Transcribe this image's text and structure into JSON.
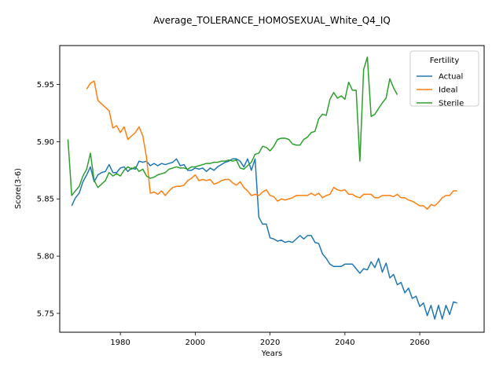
{
  "chart_data": {
    "type": "line",
    "title": "Average_TOLERANCE_HOMOSEXUAL_White_Q4_IQ",
    "xlabel": "Years",
    "ylabel": "Score(3-6)",
    "xlim": [
      1963.8,
      2077.2
    ],
    "ylim": [
      5.7335,
      5.984
    ],
    "xticks": [
      1980,
      2000,
      2020,
      2040,
      2060
    ],
    "yticks": [
      5.75,
      5.8,
      5.85,
      5.9,
      5.95
    ],
    "ytick_labels": [
      "5.75",
      "5.80",
      "5.85",
      "5.90",
      "5.95"
    ],
    "grid": false,
    "legend": {
      "title": "Fertility",
      "position": "upper right"
    },
    "series": [
      {
        "name": "Actual",
        "color": "#1f77b4",
        "x": [
          1967,
          1968,
          1969,
          1970,
          1971,
          1972,
          1973,
          1974,
          1975,
          1976,
          1977,
          1978,
          1979,
          1980,
          1981,
          1982,
          1983,
          1984,
          1985,
          1986,
          1987,
          1988,
          1989,
          1990,
          1991,
          1992,
          1993,
          1994,
          1995,
          1996,
          1997,
          1998,
          1999,
          2000,
          2001,
          2002,
          2003,
          2004,
          2005,
          2006,
          2007,
          2008,
          2009,
          2010,
          2011,
          2012,
          2013,
          2014,
          2015,
          2016,
          2017,
          2018,
          2019,
          2020,
          2021,
          2022,
          2023,
          2024,
          2025,
          2026,
          2027,
          2028,
          2029,
          2030,
          2031,
          2032,
          2033,
          2034,
          2035,
          2036,
          2037,
          2038,
          2039,
          2040,
          2041,
          2042,
          2043,
          2044,
          2045,
          2046,
          2047,
          2048,
          2049,
          2050,
          2051,
          2052,
          2053,
          2054,
          2055,
          2056,
          2057,
          2058,
          2059,
          2060,
          2061,
          2062,
          2063,
          2064,
          2065,
          2066,
          2067,
          2068,
          2069,
          2070
        ],
        "y": [
          5.844,
          5.851,
          5.855,
          5.865,
          5.871,
          5.878,
          5.865,
          5.871,
          5.873,
          5.874,
          5.88,
          5.873,
          5.873,
          5.877,
          5.878,
          5.874,
          5.877,
          5.876,
          5.883,
          5.882,
          5.883,
          5.879,
          5.881,
          5.879,
          5.881,
          5.88,
          5.881,
          5.882,
          5.885,
          5.879,
          5.88,
          5.875,
          5.875,
          5.877,
          5.876,
          5.877,
          5.874,
          5.877,
          5.875,
          5.878,
          5.88,
          5.882,
          5.883,
          5.885,
          5.885,
          5.883,
          5.878,
          5.885,
          5.875,
          5.885,
          5.834,
          5.828,
          5.828,
          5.816,
          5.815,
          5.813,
          5.814,
          5.812,
          5.813,
          5.812,
          5.815,
          5.818,
          5.815,
          5.818,
          5.818,
          5.812,
          5.811,
          5.802,
          5.798,
          5.793,
          5.791,
          5.791,
          5.791,
          5.793,
          5.793,
          5.793,
          5.789,
          5.785,
          5.789,
          5.788,
          5.795,
          5.79,
          5.798,
          5.786,
          5.794,
          5.781,
          5.784,
          5.775,
          5.777,
          5.768,
          5.772,
          5.763,
          5.765,
          5.756,
          5.759,
          5.748,
          5.757,
          5.745,
          5.757,
          5.745,
          5.757,
          5.749,
          5.76,
          5.759
        ]
      },
      {
        "name": "Ideal",
        "color": "#ff7f0e",
        "x": [
          1971,
          1972,
          1973,
          1974,
          1975,
          1976,
          1977,
          1978,
          1979,
          1980,
          1981,
          1982,
          1983,
          1984,
          1985,
          1986,
          1987,
          1988,
          1989,
          1990,
          1991,
          1992,
          1993,
          1994,
          1995,
          1996,
          1997,
          1998,
          1999,
          2000,
          2001,
          2002,
          2003,
          2004,
          2005,
          2006,
          2007,
          2008,
          2009,
          2010,
          2011,
          2012,
          2013,
          2014,
          2015,
          2016,
          2017,
          2018,
          2019,
          2020,
          2021,
          2022,
          2023,
          2024,
          2025,
          2026,
          2027,
          2028,
          2029,
          2030,
          2031,
          2032,
          2033,
          2034,
          2035,
          2036,
          2037,
          2038,
          2039,
          2040,
          2041,
          2042,
          2043,
          2044,
          2045,
          2046,
          2047,
          2048,
          2049,
          2050,
          2051,
          2052,
          2053,
          2054,
          2055,
          2056,
          2057,
          2058,
          2059,
          2060,
          2061,
          2062,
          2063,
          2064,
          2065,
          2066,
          2067,
          2068,
          2069,
          2070
        ],
        "y": [
          5.946,
          5.951,
          5.953,
          5.936,
          5.933,
          5.93,
          5.927,
          5.912,
          5.914,
          5.908,
          5.913,
          5.902,
          5.905,
          5.908,
          5.913,
          5.905,
          5.886,
          5.855,
          5.856,
          5.854,
          5.857,
          5.853,
          5.857,
          5.86,
          5.861,
          5.861,
          5.862,
          5.866,
          5.868,
          5.871,
          5.866,
          5.867,
          5.866,
          5.867,
          5.863,
          5.864,
          5.866,
          5.867,
          5.867,
          5.864,
          5.862,
          5.865,
          5.86,
          5.857,
          5.853,
          5.854,
          5.853,
          5.856,
          5.858,
          5.853,
          5.852,
          5.848,
          5.85,
          5.849,
          5.85,
          5.851,
          5.853,
          5.853,
          5.853,
          5.853,
          5.855,
          5.853,
          5.855,
          5.851,
          5.853,
          5.854,
          5.86,
          5.858,
          5.857,
          5.858,
          5.854,
          5.854,
          5.852,
          5.851,
          5.854,
          5.854,
          5.854,
          5.851,
          5.851,
          5.853,
          5.853,
          5.853,
          5.852,
          5.854,
          5.851,
          5.851,
          5.849,
          5.848,
          5.846,
          5.844,
          5.844,
          5.841,
          5.845,
          5.844,
          5.847,
          5.851,
          5.853,
          5.853,
          5.857,
          5.857
        ]
      },
      {
        "name": "Sterile",
        "color": "#2ca02c",
        "x": [
          1966,
          1967,
          1968,
          1969,
          1970,
          1971,
          1972,
          1973,
          1974,
          1975,
          1976,
          1977,
          1978,
          1979,
          1980,
          1981,
          1982,
          1983,
          1984,
          1985,
          1986,
          1987,
          1988,
          1989,
          1990,
          1991,
          1992,
          1993,
          1994,
          1995,
          1996,
          1997,
          1998,
          1999,
          2000,
          2001,
          2002,
          2003,
          2004,
          2005,
          2006,
          2007,
          2008,
          2009,
          2010,
          2011,
          2012,
          2013,
          2014,
          2015,
          2016,
          2017,
          2018,
          2019,
          2020,
          2021,
          2022,
          2023,
          2024,
          2025,
          2026,
          2027,
          2028,
          2029,
          2030,
          2031,
          2032,
          2033,
          2034,
          2035,
          2036,
          2037,
          2038,
          2039,
          2040,
          2041,
          2042,
          2043,
          2044,
          2045,
          2046,
          2047,
          2048,
          2049,
          2050,
          2051,
          2052,
          2053,
          2054
        ],
        "y": [
          5.902,
          5.853,
          5.857,
          5.861,
          5.87,
          5.876,
          5.89,
          5.866,
          5.86,
          5.863,
          5.866,
          5.873,
          5.87,
          5.872,
          5.87,
          5.875,
          5.878,
          5.876,
          5.878,
          5.874,
          5.876,
          5.87,
          5.868,
          5.869,
          5.871,
          5.872,
          5.873,
          5.876,
          5.877,
          5.878,
          5.877,
          5.877,
          5.876,
          5.878,
          5.878,
          5.879,
          5.88,
          5.881,
          5.881,
          5.882,
          5.882,
          5.883,
          5.883,
          5.884,
          5.883,
          5.884,
          5.877,
          5.876,
          5.879,
          5.882,
          5.889,
          5.89,
          5.896,
          5.895,
          5.892,
          5.896,
          5.902,
          5.903,
          5.903,
          5.902,
          5.898,
          5.897,
          5.897,
          5.902,
          5.904,
          5.908,
          5.909,
          5.92,
          5.924,
          5.923,
          5.937,
          5.943,
          5.938,
          5.94,
          5.937,
          5.952,
          5.945,
          5.945,
          5.883,
          5.963,
          5.974,
          5.922,
          5.924,
          5.929,
          5.934,
          5.938,
          5.955,
          5.947,
          5.941
        ]
      }
    ]
  }
}
